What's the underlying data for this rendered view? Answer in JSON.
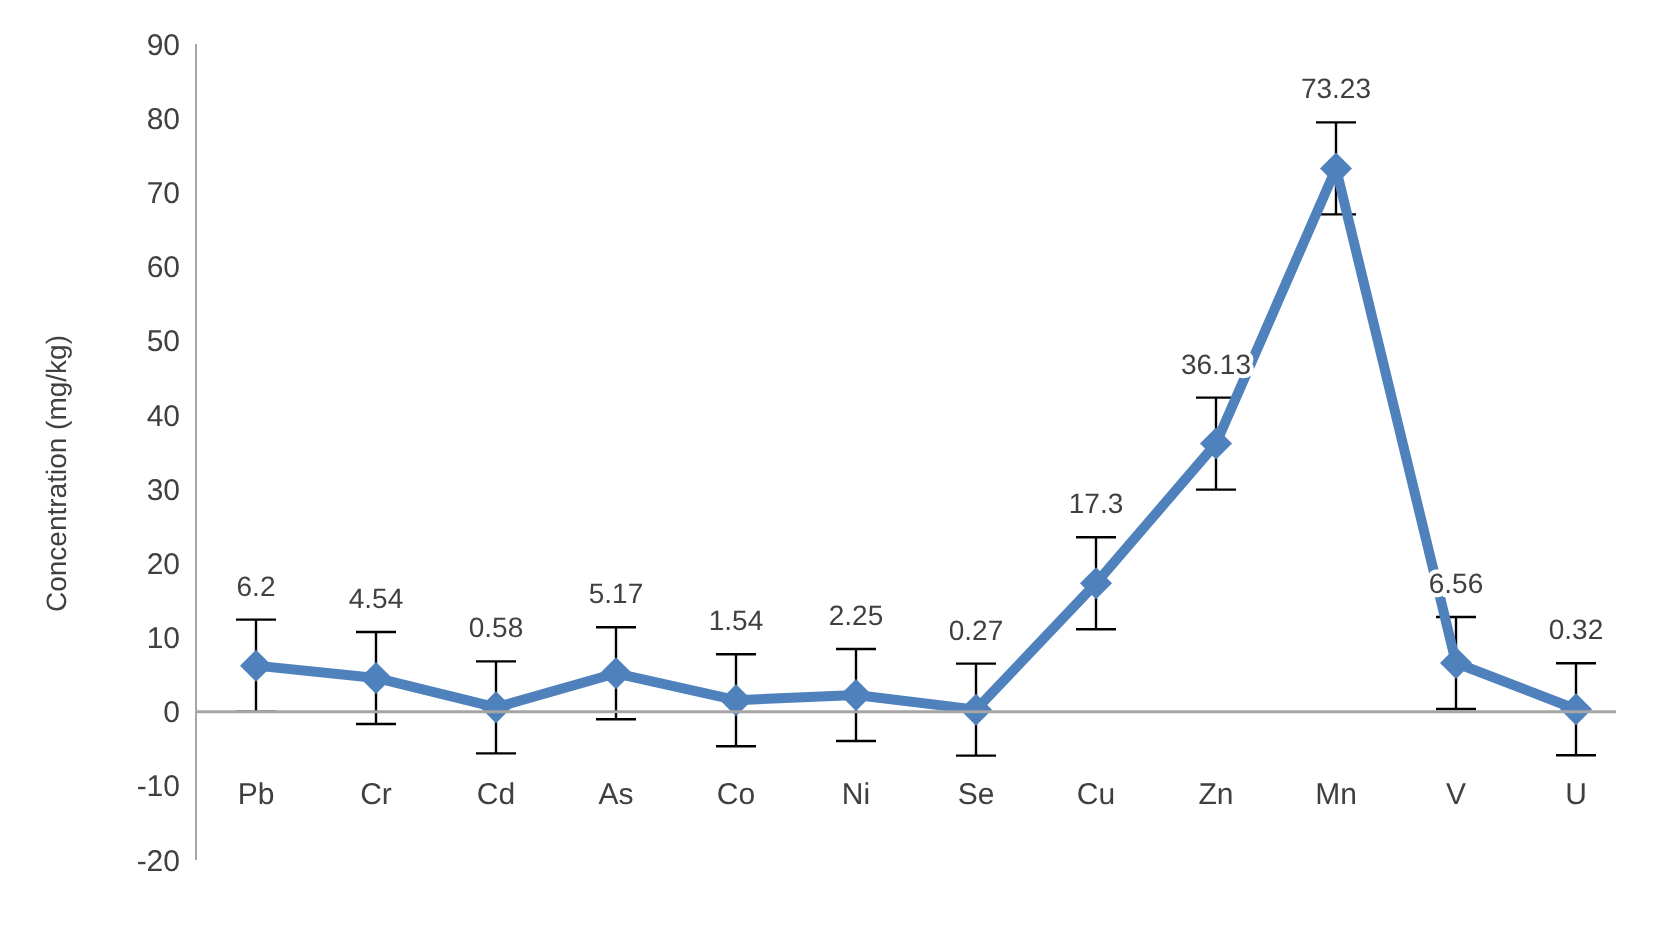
{
  "chart_data": {
    "type": "line",
    "ylabel": "Concentration (mg/kg)",
    "categories": [
      "Pb",
      "Cr",
      "Cd",
      "As",
      "Co",
      "Ni",
      "Se",
      "Cu",
      "Zn",
      "Mn",
      "V",
      "U"
    ],
    "series": [
      {
        "color": "#4f81bd",
        "values": [
          6.2,
          4.54,
          0.58,
          5.17,
          1.54,
          2.25,
          0.27,
          17.3,
          36.13,
          73.23,
          6.56,
          0.32
        ],
        "errors": [
          6.2,
          6.2,
          6.2,
          6.2,
          6.2,
          6.2,
          6.2,
          6.2,
          6.2,
          6.2,
          6.2,
          6.2
        ]
      }
    ],
    "ylim": [
      -20,
      90
    ],
    "yticks": [
      -20,
      -10,
      0,
      10,
      20,
      30,
      40,
      50,
      60,
      70,
      80,
      90
    ],
    "data_labels": true,
    "marker": "diamond",
    "line_style": "solid",
    "grid": false,
    "legend": false
  }
}
